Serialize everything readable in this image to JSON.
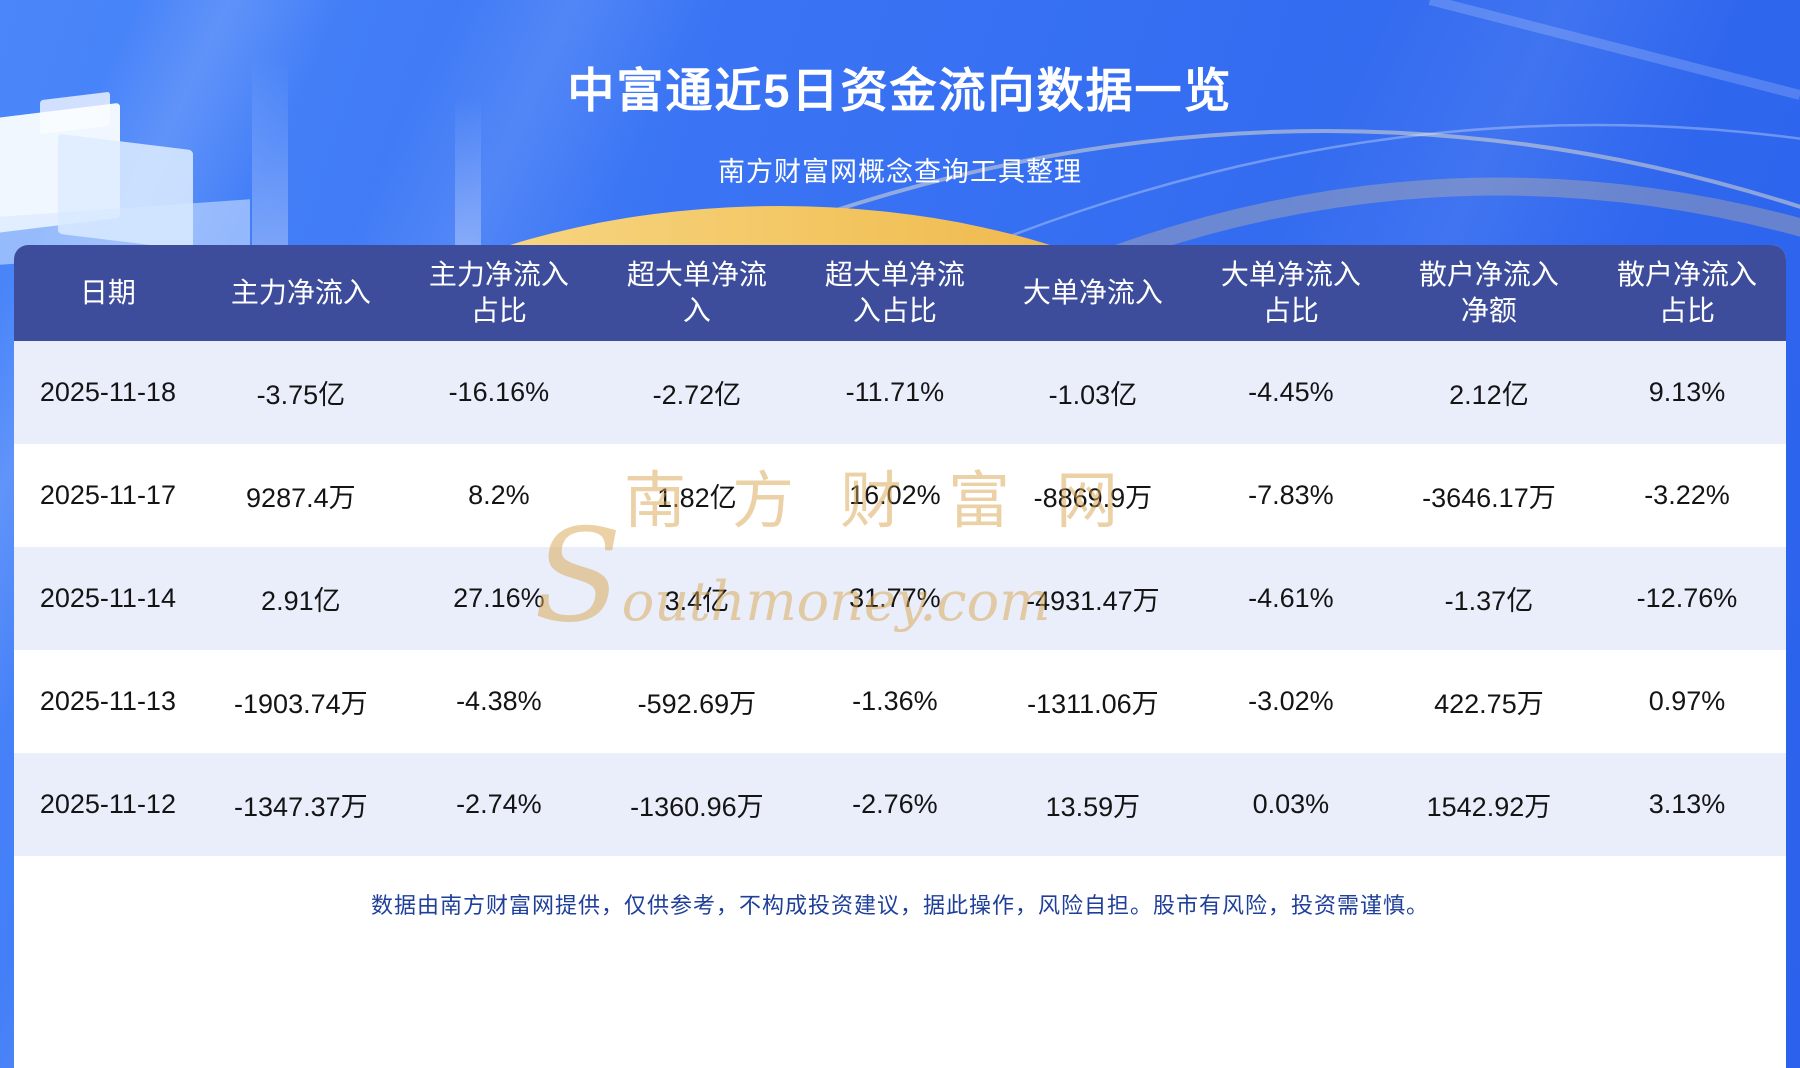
{
  "page": {
    "title": "中富通近5日资金流向数据一览",
    "subtitle": "南方财富网概念查询工具整理",
    "disclaimer": "数据由南方财富网提供，仅供参考，不构成投资建议，据此操作，风险自担。股市有风险，投资需谨慎。",
    "watermark_cn": "南方财富网",
    "watermark_en": "Southmoney.com"
  },
  "chart_data": {
    "type": "table",
    "title": "中富通近5日资金流向数据一览",
    "columns": [
      "日期",
      "主力净流入",
      "主力净流入占比",
      "超大单净流入",
      "超大单净流入占比",
      "大单净流入",
      "大单净流入占比",
      "散户净流入净额",
      "散户净流入占比"
    ],
    "rows": [
      [
        "2025-11-18",
        "-3.75亿",
        "-16.16%",
        "-2.72亿",
        "-11.71%",
        "-1.03亿",
        "-4.45%",
        "2.12亿",
        "9.13%"
      ],
      [
        "2025-11-17",
        "9287.4万",
        "8.2%",
        "1.82亿",
        "16.02%",
        "-8869.9万",
        "-7.83%",
        "-3646.17万",
        "-3.22%"
      ],
      [
        "2025-11-14",
        "2.91亿",
        "27.16%",
        "3.4亿",
        "31.77%",
        "-4931.47万",
        "-4.61%",
        "-1.37亿",
        "-12.76%"
      ],
      [
        "2025-11-13",
        "-1903.74万",
        "-4.38%",
        "-592.69万",
        "-1.36%",
        "-1311.06万",
        "-3.02%",
        "422.75万",
        "0.97%"
      ],
      [
        "2025-11-12",
        "-1347.37万",
        "-2.74%",
        "-1360.96万",
        "-2.76%",
        "13.59万",
        "0.03%",
        "1542.92万",
        "3.13%"
      ]
    ]
  },
  "colors": {
    "background_blue": "#2b61ec",
    "background_blue_light": "#4b87fa",
    "header_bg": "#3d4d9b",
    "row_alt": "#e9eefa",
    "row_white": "#ffffff",
    "accent_gold": "#f2c35c",
    "disclaimer_text": "#1f3f9a"
  }
}
